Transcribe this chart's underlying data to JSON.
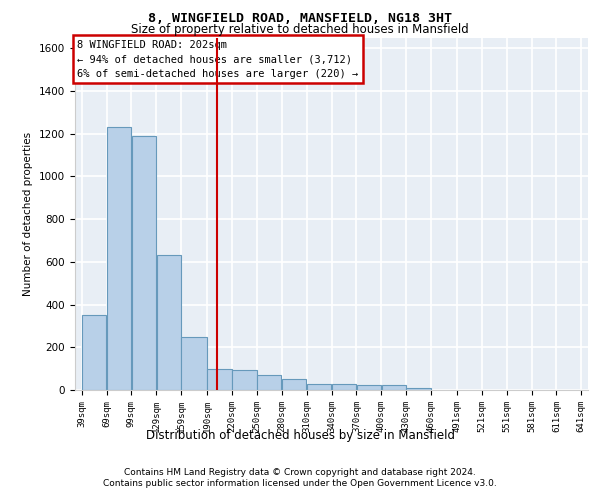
{
  "title1": "8, WINGFIELD ROAD, MANSFIELD, NG18 3HT",
  "title2": "Size of property relative to detached houses in Mansfield",
  "dist_label": "Distribution of detached houses by size in Mansfield",
  "ylabel": "Number of detached properties",
  "bins": [
    "39sqm",
    "69sqm",
    "99sqm",
    "129sqm",
    "159sqm",
    "190sqm",
    "220sqm",
    "250sqm",
    "280sqm",
    "310sqm",
    "340sqm",
    "370sqm",
    "400sqm",
    "430sqm",
    "460sqm",
    "491sqm",
    "521sqm",
    "551sqm",
    "581sqm",
    "611sqm",
    "641sqm"
  ],
  "bin_edges": [
    39,
    69,
    99,
    129,
    159,
    190,
    220,
    250,
    280,
    310,
    340,
    370,
    400,
    430,
    460,
    491,
    521,
    551,
    581,
    611,
    641
  ],
  "values": [
    350,
    1230,
    1190,
    630,
    250,
    100,
    95,
    70,
    50,
    30,
    30,
    25,
    25,
    10,
    0,
    0,
    0,
    0,
    0,
    0,
    0
  ],
  "bar_color": "#b8d0e8",
  "bar_edge_color": "#6699bb",
  "background_color": "#e8eef5",
  "grid_color": "#ffffff",
  "vline_x": 202,
  "vline_color": "#cc0000",
  "annotation_line1": "8 WINGFIELD ROAD: 202sqm",
  "annotation_line2": "← 94% of detached houses are smaller (3,712)",
  "annotation_line3": "6% of semi-detached houses are larger (220) →",
  "annotation_box_color": "#cc0000",
  "ylim": [
    0,
    1650
  ],
  "yticks": [
    0,
    200,
    400,
    600,
    800,
    1000,
    1200,
    1400,
    1600
  ],
  "footer1": "Contains HM Land Registry data © Crown copyright and database right 2024.",
  "footer2": "Contains public sector information licensed under the Open Government Licence v3.0."
}
